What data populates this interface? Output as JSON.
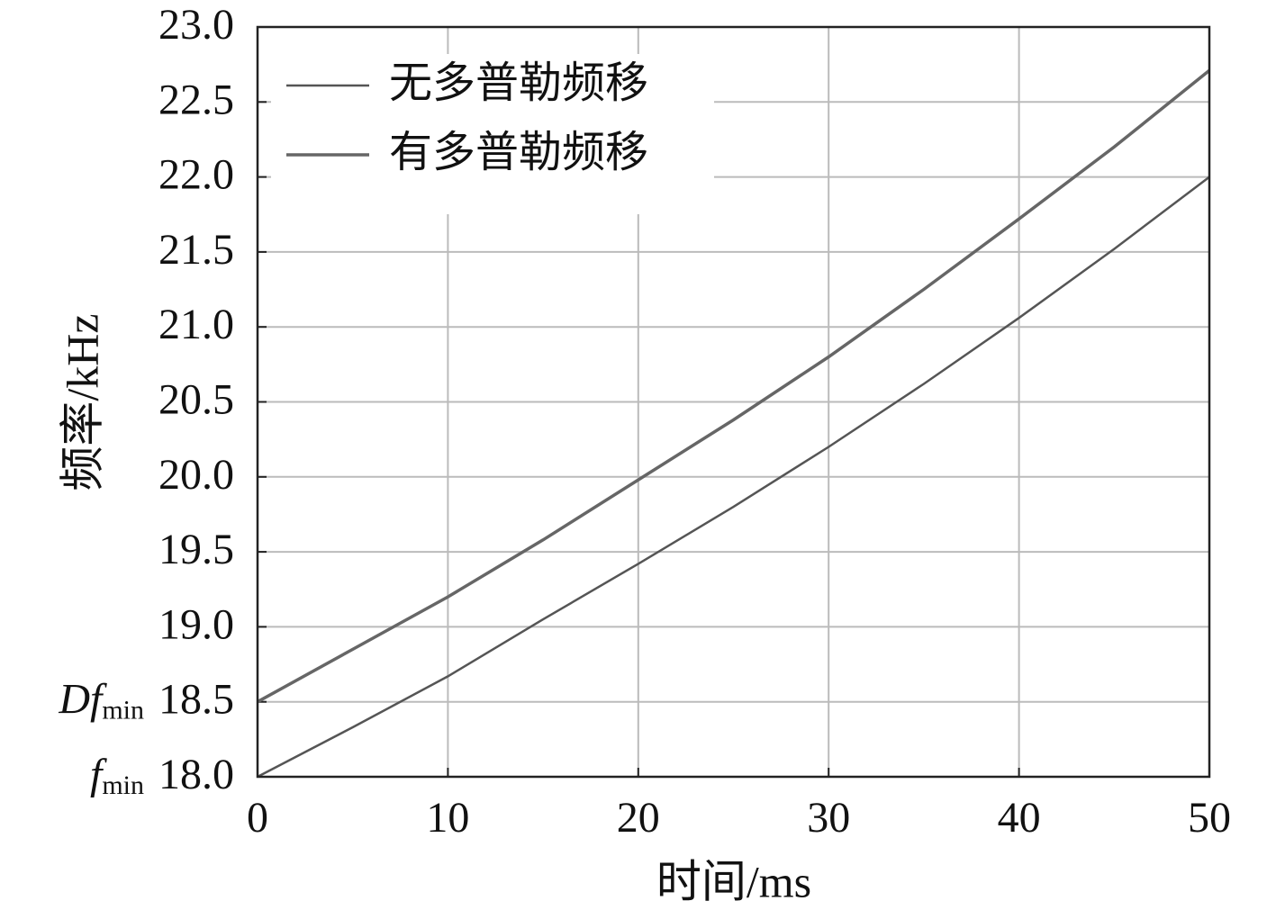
{
  "chart_data": {
    "type": "line",
    "x_label": "时间/ms",
    "y_label": "频率/kHz",
    "x": [
      0,
      5,
      10,
      15,
      20,
      25,
      30,
      35,
      40,
      45,
      50
    ],
    "series": [
      {
        "name": "无多普勒频移",
        "color": "#555555",
        "width": 2.5,
        "values": [
          18.0,
          18.33,
          18.67,
          19.05,
          19.42,
          19.8,
          20.2,
          20.62,
          21.06,
          21.52,
          22.0
        ]
      },
      {
        "name": "有多普勒频移",
        "color": "#666666",
        "width": 3.5,
        "values": [
          18.5,
          18.85,
          19.2,
          19.58,
          19.98,
          20.38,
          20.8,
          21.25,
          21.72,
          22.2,
          22.71
        ]
      }
    ],
    "xlim": [
      0,
      50
    ],
    "xticks": [
      0,
      10,
      20,
      30,
      40,
      50
    ],
    "ylim": [
      18,
      23
    ],
    "yticks": [
      {
        "value": 18,
        "label": "18.0"
      },
      18.5,
      {
        "value": 19,
        "label": "19.0"
      },
      19.5,
      {
        "value": 20,
        "label": "20.0"
      },
      20.5,
      {
        "value": 21,
        "label": "21.0"
      },
      21.5,
      {
        "value": 22,
        "label": "22.0"
      },
      22.5,
      {
        "value": 23,
        "label": "23.0"
      }
    ],
    "y_markers": [
      {
        "value": 18,
        "symbol": "f",
        "subscript": "min"
      },
      {
        "value": 18.5,
        "symbol": "Df",
        "subscript": "min"
      }
    ],
    "grid": true,
    "legend": "upper left"
  }
}
